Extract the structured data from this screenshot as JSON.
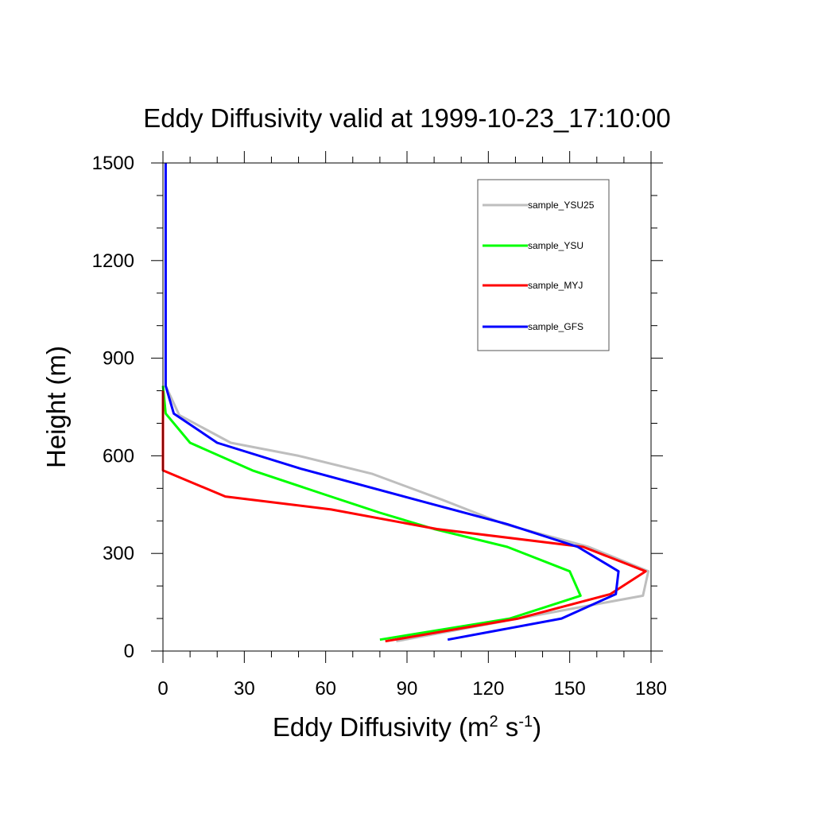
{
  "chart_data": {
    "type": "line",
    "title": "Eddy Diffusivity valid at 1999-10-23_17:10:00",
    "xlabel_parts": {
      "main": "Eddy Diffusivity (m",
      "sup1": "2",
      "mid": " s",
      "sup2": "-1",
      "end": ")"
    },
    "ylabel": "Height (m)",
    "xlim": [
      0,
      180
    ],
    "ylim": [
      0,
      1500
    ],
    "xticks": [
      "0",
      "30",
      "60",
      "90",
      "120",
      "150",
      "180"
    ],
    "yticks": [
      "0",
      "300",
      "600",
      "900",
      "1200",
      "1500"
    ],
    "grid": false,
    "legend_position": "top-right",
    "series": [
      {
        "name": "sample_YSU25",
        "color": "#bebebe",
        "points": [
          [
            86,
            30
          ],
          [
            131,
            100
          ],
          [
            177,
            170
          ],
          [
            179,
            245
          ],
          [
            157,
            320
          ],
          [
            126,
            390
          ],
          [
            103,
            465
          ],
          [
            77,
            545
          ],
          [
            50,
            600
          ],
          [
            25,
            640
          ],
          [
            6,
            725
          ],
          [
            1,
            815
          ],
          [
            1,
            1100
          ],
          [
            1,
            1500
          ]
        ]
      },
      {
        "name": "sample_YSU",
        "color": "#00ff00",
        "points": [
          [
            80,
            35
          ],
          [
            128,
            100
          ],
          [
            154,
            170
          ],
          [
            150,
            245
          ],
          [
            127,
            320
          ],
          [
            100,
            375
          ],
          [
            80,
            425
          ],
          [
            60,
            480
          ],
          [
            33,
            555
          ],
          [
            10,
            640
          ],
          [
            1,
            730
          ],
          [
            0,
            815
          ]
        ]
      },
      {
        "name": "sample_MYJ",
        "color": "#ff0000",
        "points": [
          [
            82,
            30
          ],
          [
            131,
            100
          ],
          [
            165,
            175
          ],
          [
            178,
            245
          ],
          [
            155,
            320
          ],
          [
            101,
            375
          ],
          [
            62,
            435
          ],
          [
            23,
            475
          ],
          [
            0,
            555
          ],
          [
            0,
            800
          ]
        ]
      },
      {
        "name": "sample_GFS",
        "color": "#0000ff",
        "points": [
          [
            105,
            35
          ],
          [
            147,
            100
          ],
          [
            167,
            175
          ],
          [
            168,
            245
          ],
          [
            153,
            320
          ],
          [
            127,
            390
          ],
          [
            100,
            450
          ],
          [
            51,
            560
          ],
          [
            20,
            640
          ],
          [
            4,
            730
          ],
          [
            1,
            815
          ],
          [
            1,
            1100
          ],
          [
            1,
            1500
          ]
        ]
      }
    ]
  }
}
